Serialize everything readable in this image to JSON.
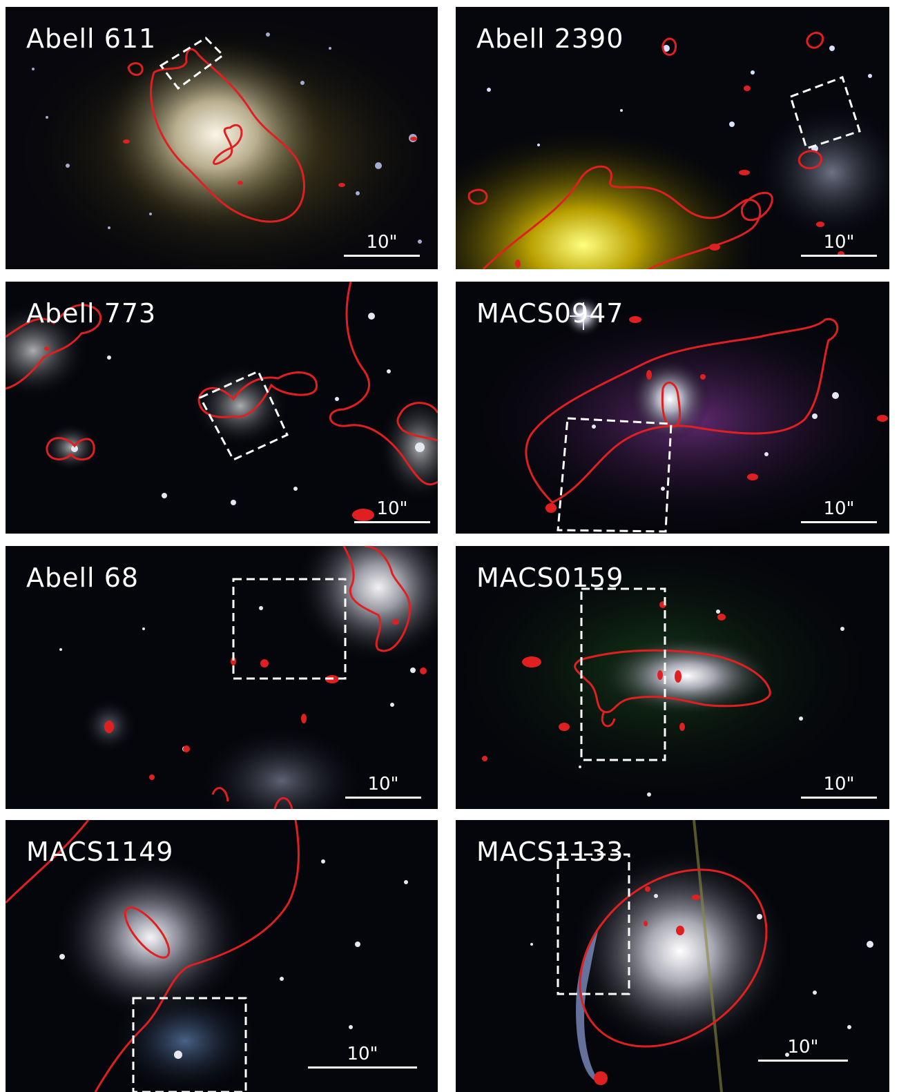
{
  "panels": [
    {
      "name": "Abell 611",
      "scale_label": "10\""
    },
    {
      "name": "Abell 2390",
      "scale_label": "10\""
    },
    {
      "name": "Abell 773",
      "scale_label": "10\""
    },
    {
      "name": "MACS0947",
      "scale_label": "10\""
    },
    {
      "name": "Abell 68",
      "scale_label": "10\""
    },
    {
      "name": "MACS0159",
      "scale_label": "10\""
    },
    {
      "name": "MACS1149",
      "scale_label": "10\""
    },
    {
      "name": "MACS1133",
      "scale_label": "10\""
    }
  ],
  "colors": {
    "critical_curve": "#e02020",
    "box_outline": "#ffffff",
    "background": "#05060b"
  }
}
